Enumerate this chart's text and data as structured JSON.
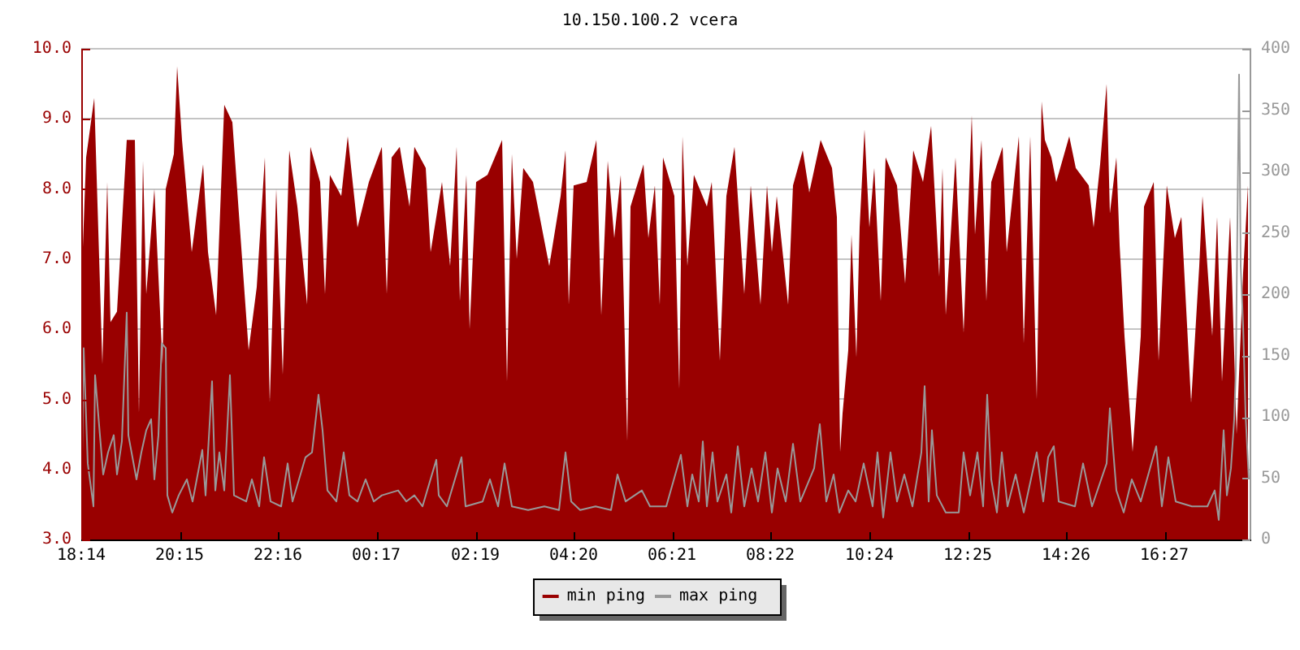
{
  "chart_data": {
    "type": "area",
    "title": "10.150.100.2 vcera",
    "xlim": [
      "--01-01T18:14",
      "--01-02T18:14"
    ],
    "xticks": [
      {
        "value": "--01-01T18:14",
        "label": "18:14"
      },
      {
        "value": "--01-01T20:15",
        "label": "20:15"
      },
      {
        "value": "--01-01T22:16",
        "label": "22:16"
      },
      {
        "value": "--01-02T00:17",
        "label": "00:17"
      },
      {
        "value": "--01-02T02:19",
        "label": "02:19"
      },
      {
        "value": "--01-02T04:20",
        "label": "04:20"
      },
      {
        "value": "--01-02T06:21",
        "label": "06:21"
      },
      {
        "value": "--01-02T08:22",
        "label": "08:22"
      },
      {
        "value": "--01-02T10:24",
        "label": "10:24"
      },
      {
        "value": "--01-02T12:25",
        "label": "12:25"
      },
      {
        "value": "--01-02T14:26",
        "label": "14:26"
      },
      {
        "value": "--01-02T16:27",
        "label": "16:27"
      }
    ],
    "ylim": [
      3,
      10
    ],
    "yticks": [
      {
        "value": 3,
        "label": "3.0"
      },
      {
        "value": 4,
        "label": "4.0"
      },
      {
        "value": 5,
        "label": "5.0"
      },
      {
        "value": 6,
        "label": "6.0"
      },
      {
        "value": 7,
        "label": "7.0"
      },
      {
        "value": 8,
        "label": "8.0"
      },
      {
        "value": 9,
        "label": "9.0"
      },
      {
        "value": 10,
        "label": "10.0"
      }
    ],
    "y2lim": [
      0,
      400
    ],
    "y2ticks": [
      0,
      50,
      100,
      150,
      200,
      250,
      300,
      350,
      400
    ],
    "grid": "y",
    "legend": "bottom",
    "series": [
      {
        "name": "min ping",
        "color": "#990000",
        "x": [
          "--01-01T18:15",
          "--01-01T18:20",
          "--01-01T18:30",
          "--01-01T18:40",
          "--01-01T18:46",
          "--01-01T18:50",
          "--01-01T18:58",
          "--01-01T19:10",
          "--01-01T19:20",
          "--01-01T19:25",
          "--01-01T19:30",
          "--01-01T19:34",
          "--01-01T19:44",
          "--01-01T19:54",
          "--01-01T19:58",
          "--01-01T20:08",
          "--01-01T20:12",
          "--01-01T20:18",
          "--01-01T20:30",
          "--01-01T20:44",
          "--01-01T20:50",
          "--01-01T21:00",
          "--01-01T21:10",
          "--01-01T21:20",
          "--01-01T21:40",
          "--01-01T21:50",
          "--01-01T22:00",
          "--01-01T22:06",
          "--01-01T22:14",
          "--01-01T22:22",
          "--01-01T22:30",
          "--01-01T22:40",
          "--01-01T22:52",
          "--01-01T22:56",
          "--01-01T23:08",
          "--01-01T23:14",
          "--01-01T23:20",
          "--01-01T23:34",
          "--01-01T23:42",
          "--01-01T23:54",
          "--01-02T00:08",
          "--01-02T00:24",
          "--01-02T00:30",
          "--01-02T00:36",
          "--01-02T00:46",
          "--01-02T00:58",
          "--01-02T01:04",
          "--01-02T01:18",
          "--01-02T01:24",
          "--01-02T01:38",
          "--01-02T01:48",
          "--01-02T01:56",
          "--01-02T02:00",
          "--01-02T02:08",
          "--01-02T02:12",
          "--01-02T02:20",
          "--01-02T02:34",
          "--01-02T02:52",
          "--01-02T02:58",
          "--01-02T03:04",
          "--01-02T03:10",
          "--01-02T03:18",
          "--01-02T03:30",
          "--01-02T03:50",
          "--01-02T04:04",
          "--01-02T04:10",
          "--01-02T04:14",
          "--01-02T04:20",
          "--01-02T04:36",
          "--01-02T04:48",
          "--01-02T04:54",
          "--01-02T05:02",
          "--01-02T05:10",
          "--01-02T05:18",
          "--01-02T05:26",
          "--01-02T05:30",
          "--01-02T05:46",
          "--01-02T05:52",
          "--01-02T06:00",
          "--01-02T06:06",
          "--01-02T06:10",
          "--01-02T06:24",
          "--01-02T06:30",
          "--01-02T06:34",
          "--01-02T06:40",
          "--01-02T06:48",
          "--01-02T07:04",
          "--01-02T07:10",
          "--01-02T07:20",
          "--01-02T07:28",
          "--01-02T07:38",
          "--01-02T07:50",
          "--01-02T07:58",
          "--01-02T08:10",
          "--01-02T08:18",
          "--01-02T08:24",
          "--01-02T08:30",
          "--01-02T08:44",
          "--01-02T08:50",
          "--01-02T09:02",
          "--01-02T09:10",
          "--01-02T09:24",
          "--01-02T09:38",
          "--01-02T09:44",
          "--01-02T09:48",
          "--01-02T09:51",
          "--01-02T09:58",
          "--01-02T10:02",
          "--01-02T10:08",
          "--01-02T10:12",
          "--01-02T10:18",
          "--01-02T10:24",
          "--01-02T10:30",
          "--01-02T10:38",
          "--01-02T10:44",
          "--01-02T10:58",
          "--01-02T11:08",
          "--01-02T11:18",
          "--01-02T11:30",
          "--01-02T11:40",
          "--01-02T11:50",
          "--01-02T11:54",
          "--01-02T11:58",
          "--01-02T12:10",
          "--01-02T12:20",
          "--01-02T12:30",
          "--01-02T12:34",
          "--01-02T12:42",
          "--01-02T12:48",
          "--01-02T12:54",
          "--01-02T13:08",
          "--01-02T13:13",
          "--01-02T13:28",
          "--01-02T13:34",
          "--01-02T13:42",
          "--01-02T13:50",
          "--01-02T13:56",
          "--01-02T14:00",
          "--01-02T14:08",
          "--01-02T14:14",
          "--01-02T14:30",
          "--01-02T14:38",
          "--01-02T14:54",
          "--01-02T15:00",
          "--01-02T15:08",
          "--01-02T15:16",
          "--01-02T15:20",
          "--01-02T15:28",
          "--01-02T15:32",
          "--01-02T15:38",
          "--01-02T15:48",
          "--01-02T15:58",
          "--01-02T16:02",
          "--01-02T16:14",
          "--01-02T16:20",
          "--01-02T16:30",
          "--01-02T16:40",
          "--01-02T16:48",
          "--01-02T17:00",
          "--01-02T17:10",
          "--01-02T17:14",
          "--01-02T17:26",
          "--01-02T17:32",
          "--01-02T17:38",
          "--01-02T17:48",
          "--01-02T17:56",
          "--01-02T18:04",
          "--01-02T18:10"
        ],
        "values": [
          6.85,
          8.45,
          9.3,
          5.5,
          8.1,
          6.1,
          6.25,
          8.7,
          8.7,
          4.8,
          8.4,
          6.5,
          8.0,
          5.5,
          8.0,
          8.5,
          9.75,
          8.7,
          7.1,
          8.35,
          7.1,
          6.2,
          9.2,
          8.95,
          5.7,
          6.6,
          8.45,
          4.95,
          8.0,
          5.35,
          8.55,
          7.75,
          6.35,
          8.6,
          8.1,
          6.5,
          8.2,
          7.9,
          8.75,
          7.45,
          8.1,
          8.6,
          6.5,
          8.45,
          8.6,
          7.75,
          8.6,
          8.3,
          7.1,
          8.1,
          6.9,
          8.6,
          6.4,
          8.2,
          6.0,
          8.1,
          8.2,
          8.7,
          5.25,
          8.5,
          7.0,
          8.3,
          8.1,
          6.9,
          7.9,
          8.55,
          6.35,
          8.05,
          8.1,
          8.7,
          6.2,
          8.4,
          7.3,
          8.2,
          4.4,
          7.75,
          8.35,
          7.3,
          8.05,
          6.35,
          8.45,
          7.9,
          5.15,
          8.75,
          6.9,
          8.2,
          7.75,
          8.1,
          5.55,
          7.9,
          8.6,
          6.5,
          8.05,
          6.35,
          8.05,
          7.1,
          7.9,
          6.35,
          8.05,
          8.55,
          7.95,
          8.7,
          8.3,
          7.6,
          4.25,
          4.8,
          5.7,
          7.35,
          5.6,
          7.45,
          8.85,
          7.45,
          8.3,
          6.4,
          8.45,
          8.05,
          6.65,
          8.55,
          8.1,
          8.9,
          6.75,
          8.3,
          6.2,
          8.45,
          5.95,
          9.05,
          7.35,
          8.7,
          6.4,
          8.1,
          8.6,
          7.1,
          8.75,
          5.8,
          8.75,
          5.0,
          9.25,
          8.7,
          8.45,
          8.1,
          8.75,
          8.3,
          8.05,
          7.45,
          8.35,
          9.5,
          7.65,
          8.45,
          7.2,
          5.9,
          4.25,
          5.9,
          7.75,
          8.1,
          5.55,
          8.05,
          7.3,
          7.6,
          4.95,
          6.9,
          7.9,
          5.9,
          7.6,
          5.25,
          7.6,
          4.5,
          6.8,
          8.05
        ]
      },
      {
        "name": "max ping",
        "type": "line",
        "axis": "y2",
        "color": "#999999",
        "x": [
          "--01-01T18:15",
          "--01-01T18:17",
          "--01-01T18:22",
          "--01-01T18:29",
          "--01-01T18:31",
          "--01-01T18:37",
          "--01-01T18:41",
          "--01-01T18:47",
          "--01-01T18:54",
          "--01-01T18:58",
          "--01-01T19:04",
          "--01-01T19:10",
          "--01-01T19:12",
          "--01-01T19:22",
          "--01-01T19:28",
          "--01-01T19:34",
          "--01-01T19:40",
          "--01-01T19:44",
          "--01-01T19:49",
          "--01-01T19:53",
          "--01-01T19:58",
          "--01-01T20:00",
          "--01-01T20:06",
          "--01-01T20:14",
          "--01-01T20:24",
          "--01-01T20:31",
          "--01-01T20:43",
          "--01-01T20:47",
          "--01-01T20:55",
          "--01-01T20:59",
          "--01-01T21:04",
          "--01-01T21:10",
          "--01-01T21:17",
          "--01-01T21:22",
          "--01-01T21:37",
          "--01-01T21:44",
          "--01-01T21:53",
          "--01-01T21:59",
          "--01-01T22:07",
          "--01-01T22:20",
          "--01-01T22:28",
          "--01-01T22:34",
          "--01-01T22:50",
          "--01-01T22:58",
          "--01-01T23:06",
          "--01-01T23:11",
          "--01-01T23:17",
          "--01-01T23:28",
          "--01-01T23:37",
          "--01-01T23:44",
          "--01-01T23:54",
          "--01-02T00:04",
          "--01-02T00:14",
          "--01-02T00:24",
          "--01-02T00:44",
          "--01-02T00:54",
          "--01-02T01:04",
          "--01-02T01:14",
          "--01-02T01:31",
          "--01-02T01:34",
          "--01-02T01:44",
          "--01-02T02:02",
          "--01-02T02:07",
          "--01-02T02:28",
          "--01-02T02:37",
          "--01-02T02:47",
          "--01-02T02:55",
          "--01-02T03:04",
          "--01-02T03:24",
          "--01-02T03:44",
          "--01-02T04:02",
          "--01-02T04:10",
          "--01-02T04:17",
          "--01-02T04:28",
          "--01-02T04:47",
          "--01-02T05:06",
          "--01-02T05:14",
          "--01-02T05:24",
          "--01-02T05:44",
          "--01-02T05:54",
          "--01-02T06:14",
          "--01-02T06:32",
          "--01-02T06:40",
          "--01-02T06:46",
          "--01-02T06:54",
          "--01-02T06:59",
          "--01-02T07:04",
          "--01-02T07:11",
          "--01-02T07:17",
          "--01-02T07:28",
          "--01-02T07:34",
          "--01-02T07:42",
          "--01-02T07:50",
          "--01-02T07:59",
          "--01-02T08:07",
          "--01-02T08:16",
          "--01-02T08:24",
          "--01-02T08:31",
          "--01-02T08:41",
          "--01-02T08:50",
          "--01-02T08:59",
          "--01-02T09:16",
          "--01-02T09:23",
          "--01-02T09:31",
          "--01-02T09:40",
          "--01-02T09:47",
          "--01-02T09:58",
          "--01-02T10:07",
          "--01-02T10:17",
          "--01-02T10:28",
          "--01-02T10:34",
          "--01-02T10:41",
          "--01-02T10:50",
          "--01-02T10:58",
          "--01-02T11:07",
          "--01-02T11:17",
          "--01-02T11:28",
          "--01-02T11:32",
          "--01-02T11:37",
          "--01-02T11:41",
          "--01-02T11:47",
          "--01-02T11:58",
          "--01-02T12:14",
          "--01-02T12:20",
          "--01-02T12:28",
          "--01-02T12:37",
          "--01-02T12:44",
          "--01-02T12:49",
          "--01-02T12:54",
          "--01-02T13:01",
          "--01-02T13:07",
          "--01-02T13:14",
          "--01-02T13:24",
          "--01-02T13:34",
          "--01-02T13:50",
          "--01-02T13:58",
          "--01-02T14:04",
          "--01-02T14:11",
          "--01-02T14:17",
          "--01-02T14:37",
          "--01-02T14:47",
          "--01-02T14:58",
          "--01-02T15:16",
          "--01-02T15:20",
          "--01-02T15:28",
          "--01-02T15:37",
          "--01-02T15:47",
          "--01-02T15:58",
          "--01-02T16:17",
          "--01-02T16:24",
          "--01-02T16:32",
          "--01-02T16:41",
          "--01-02T17:01",
          "--01-02T17:20",
          "--01-02T17:29",
          "--01-02T17:34",
          "--01-02T17:40",
          "--01-02T17:44",
          "--01-02T17:49",
          "--01-02T17:53",
          "--01-02T17:55",
          "--01-02T17:59",
          "--01-02T18:01",
          "--01-02T18:04",
          "--01-02T18:07",
          "--01-02T18:11"
        ],
        "values": [
          71,
          156,
          62,
          27,
          134,
          85,
          53,
          71,
          85,
          53,
          80,
          185,
          85,
          49,
          71,
          89,
          98,
          49,
          85,
          160,
          156,
          36,
          22,
          36,
          49,
          31,
          73,
          36,
          129,
          40,
          71,
          40,
          134,
          36,
          31,
          49,
          27,
          67,
          31,
          27,
          62,
          31,
          67,
          71,
          118,
          89,
          40,
          31,
          71,
          36,
          31,
          49,
          31,
          36,
          40,
          31,
          36,
          27,
          65,
          36,
          27,
          67,
          27,
          31,
          49,
          27,
          62,
          27,
          24,
          27,
          24,
          71,
          31,
          24,
          27,
          24,
          53,
          31,
          40,
          27,
          27,
          69,
          27,
          53,
          31,
          80,
          27,
          71,
          31,
          53,
          22,
          76,
          27,
          58,
          31,
          71,
          22,
          58,
          31,
          78,
          31,
          58,
          94,
          31,
          53,
          22,
          40,
          31,
          62,
          27,
          71,
          18,
          71,
          31,
          53,
          27,
          71,
          125,
          31,
          89,
          36,
          22,
          22,
          71,
          36,
          71,
          27,
          118,
          49,
          22,
          71,
          27,
          53,
          22,
          71,
          31,
          67,
          76,
          31,
          27,
          62,
          27,
          62,
          107,
          40,
          22,
          49,
          31,
          76,
          27,
          67,
          31,
          27,
          27,
          40,
          16,
          89,
          36,
          58,
          98,
          138,
          379,
          223,
          174,
          102,
          49
        ]
      }
    ]
  }
}
